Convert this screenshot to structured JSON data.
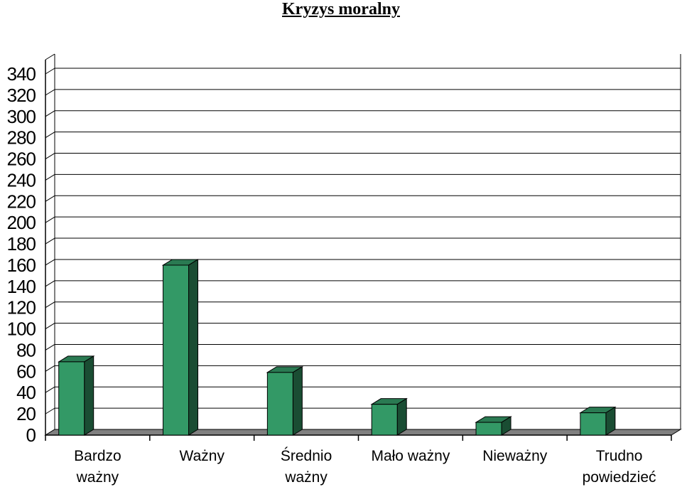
{
  "chart_data": {
    "type": "bar",
    "title": "Kryzys moralny",
    "xlabel": "",
    "ylabel": "",
    "categories": [
      [
        "Bardzo",
        "ważny"
      ],
      [
        "Ważny"
      ],
      [
        "Średnio",
        "ważny"
      ],
      [
        "Mało ważny"
      ],
      [
        "Nieważny"
      ],
      [
        "Trudno",
        "powiedzieć"
      ]
    ],
    "values": [
      69,
      160,
      59,
      29,
      12,
      21
    ],
    "ylim": [
      0,
      340
    ],
    "yticks": [
      0,
      20,
      40,
      60,
      80,
      100,
      120,
      140,
      160,
      180,
      200,
      220,
      240,
      260,
      280,
      300,
      320,
      340
    ],
    "grid": true,
    "legend": "none",
    "colors": {
      "bar_front": "#339966",
      "bar_side": "#1a4d33",
      "bar_top": "#2a7a52",
      "floor": "#808080",
      "gridline": "#000000"
    }
  }
}
